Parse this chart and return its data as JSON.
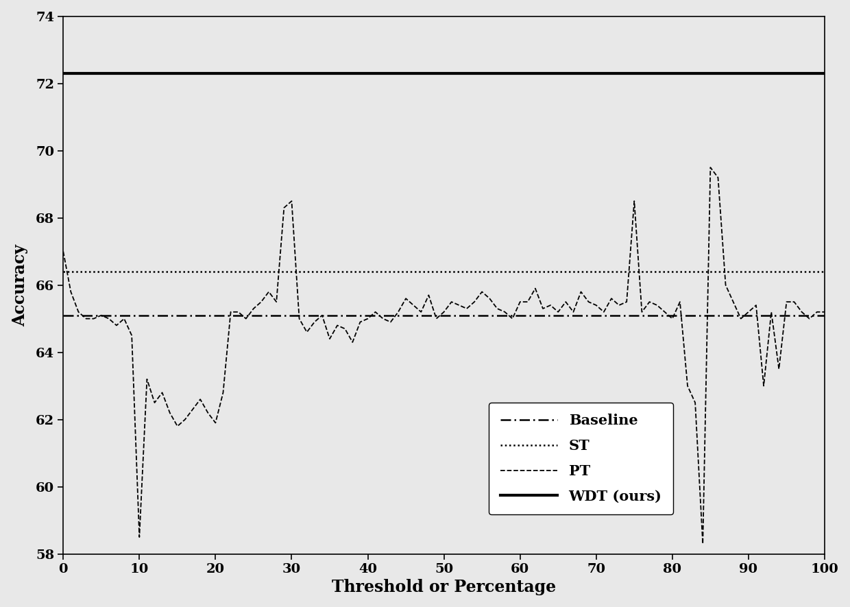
{
  "xlabel": "Threshold or Percentage",
  "ylabel": "Accuracy",
  "xlim": [
    0,
    100
  ],
  "ylim": [
    58,
    74
  ],
  "yticks": [
    58,
    60,
    62,
    64,
    66,
    68,
    70,
    72,
    74
  ],
  "xticks": [
    0,
    10,
    20,
    30,
    40,
    50,
    60,
    70,
    80,
    90,
    100
  ],
  "baseline_value": 65.1,
  "st_value": 66.4,
  "wdt_value": 72.3,
  "background_color": "#e8e8e8",
  "pt_x": [
    0,
    1,
    2,
    3,
    4,
    5,
    6,
    7,
    8,
    9,
    10,
    11,
    12,
    13,
    14,
    15,
    16,
    17,
    18,
    19,
    20,
    21,
    22,
    23,
    24,
    25,
    26,
    27,
    28,
    29,
    30,
    31,
    32,
    33,
    34,
    35,
    36,
    37,
    38,
    39,
    40,
    41,
    42,
    43,
    44,
    45,
    46,
    47,
    48,
    49,
    50,
    51,
    52,
    53,
    54,
    55,
    56,
    57,
    58,
    59,
    60,
    61,
    62,
    63,
    64,
    65,
    66,
    67,
    68,
    69,
    70,
    71,
    72,
    73,
    74,
    75,
    76,
    77,
    78,
    79,
    80,
    81,
    82,
    83,
    84,
    85,
    86,
    87,
    88,
    89,
    90,
    91,
    92,
    93,
    94,
    95,
    96,
    97,
    98,
    99,
    100
  ],
  "pt_y": [
    67.0,
    65.8,
    65.2,
    65.0,
    65.0,
    65.1,
    65.0,
    64.8,
    65.0,
    64.5,
    58.5,
    63.2,
    62.5,
    62.8,
    62.2,
    61.8,
    62.0,
    62.3,
    62.6,
    62.2,
    61.9,
    62.8,
    65.2,
    65.2,
    65.0,
    65.3,
    65.5,
    65.8,
    65.5,
    68.3,
    68.5,
    65.0,
    64.6,
    64.9,
    65.1,
    64.4,
    64.8,
    64.7,
    64.3,
    64.9,
    65.0,
    65.2,
    65.0,
    64.9,
    65.2,
    65.6,
    65.4,
    65.2,
    65.7,
    65.0,
    65.2,
    65.5,
    65.4,
    65.3,
    65.5,
    65.8,
    65.6,
    65.3,
    65.2,
    65.0,
    65.5,
    65.5,
    65.9,
    65.3,
    65.4,
    65.2,
    65.5,
    65.2,
    65.8,
    65.5,
    65.4,
    65.2,
    65.6,
    65.4,
    65.5,
    68.5,
    65.2,
    65.5,
    65.4,
    65.2,
    65.0,
    65.5,
    63.0,
    62.5,
    58.3,
    69.5,
    69.2,
    66.0,
    65.5,
    65.0,
    65.2,
    65.4,
    63.0,
    65.2,
    63.5,
    65.5,
    65.5,
    65.2,
    65.0,
    65.2,
    65.2
  ]
}
